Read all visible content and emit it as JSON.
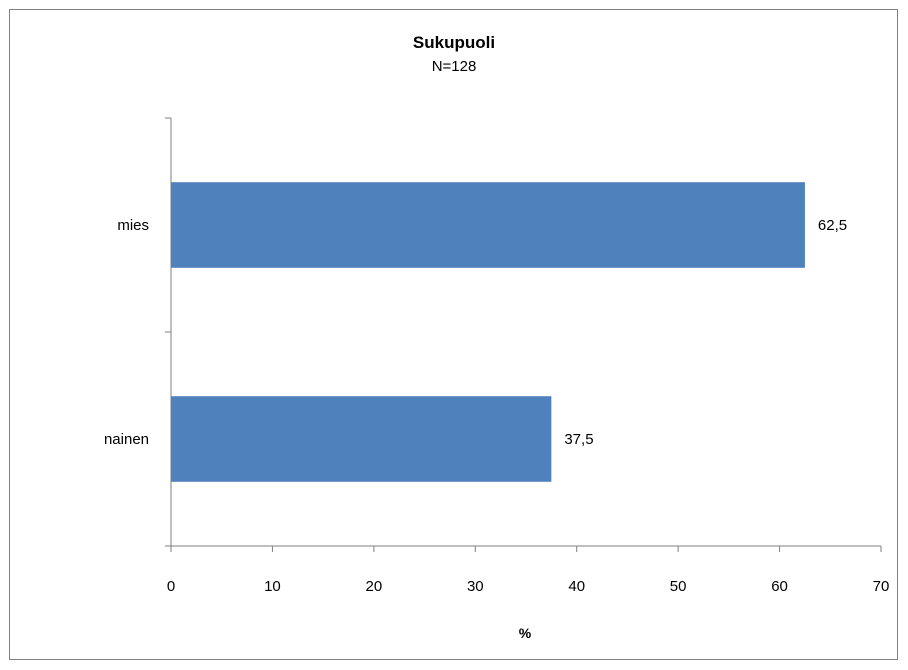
{
  "chart_data": {
    "type": "bar",
    "orientation": "horizontal",
    "title": "Sukupuoli",
    "subtitle": "N=128",
    "categories": [
      "mies",
      "nainen"
    ],
    "values": [
      62.5,
      37.5
    ],
    "value_labels": [
      "62,5",
      "37,5"
    ],
    "xlabel": "%",
    "ylabel": "",
    "xlim": [
      0,
      70
    ],
    "xticks": [
      0,
      10,
      20,
      30,
      40,
      50,
      60,
      70
    ],
    "grid": false,
    "legend": "none",
    "bar_color": "#4F81BD",
    "axis_color": "#7F7F7F"
  }
}
